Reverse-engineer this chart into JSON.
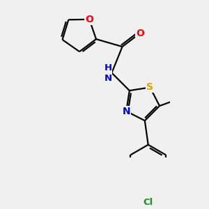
{
  "background_color": "#f0f0f0",
  "bond_color": "#000000",
  "atom_colors": {
    "O": "#ff0000",
    "N": "#0000cd",
    "S": "#ccaa00",
    "Cl": "#228b22",
    "C": "#000000"
  },
  "line_width": 1.6,
  "font_size": 9.5
}
